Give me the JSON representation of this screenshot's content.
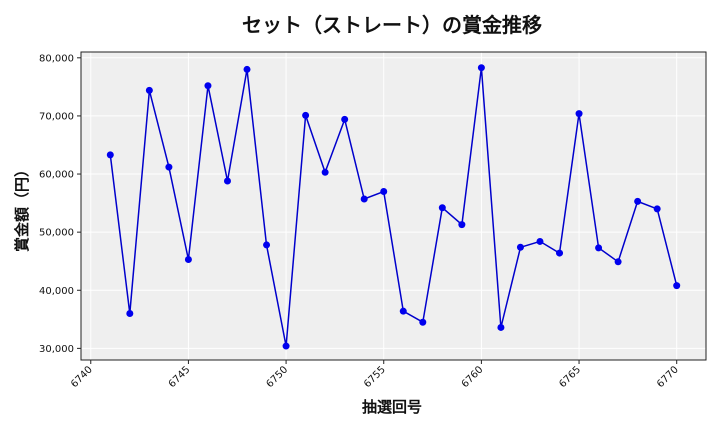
{
  "chart_data": {
    "type": "line",
    "title": "セット（ストレート）の賞金推移",
    "xlabel": "抽選回号",
    "ylabel": "賞金額（円）",
    "xlim": [
      6739.5,
      6771.5
    ],
    "ylim": [
      28000,
      81000
    ],
    "grid": true,
    "x_ticks": [
      6740,
      6745,
      6750,
      6755,
      6760,
      6765,
      6770
    ],
    "y_ticks": [
      30000,
      40000,
      50000,
      60000,
      70000,
      80000
    ],
    "y_tick_labels": [
      "30,000",
      "40,000",
      "50,000",
      "60,000",
      "70,000",
      "80,000"
    ],
    "colors": {
      "line": "#0000cc",
      "marker": "#0000ee",
      "plot_bg": "#efefef",
      "grid": "#ffffff"
    },
    "series": [
      {
        "x": [
          6741,
          6742,
          6743,
          6744,
          6745,
          6746,
          6747,
          6748,
          6749,
          6750,
          6751,
          6752,
          6753,
          6754,
          6755,
          6756,
          6757,
          6758,
          6759,
          6760,
          6761,
          6762,
          6763,
          6764,
          6765,
          6766,
          6767,
          6768,
          6769,
          6770
        ],
        "values": [
          63300,
          36000,
          74400,
          61200,
          45300,
          75200,
          58800,
          78000,
          47800,
          30400,
          70100,
          60300,
          69400,
          55700,
          57000,
          36400,
          34500,
          54200,
          51300,
          78300,
          33600,
          47400,
          48400,
          46400,
          70400,
          47300,
          44900,
          55300,
          54000,
          40800
        ]
      }
    ]
  }
}
